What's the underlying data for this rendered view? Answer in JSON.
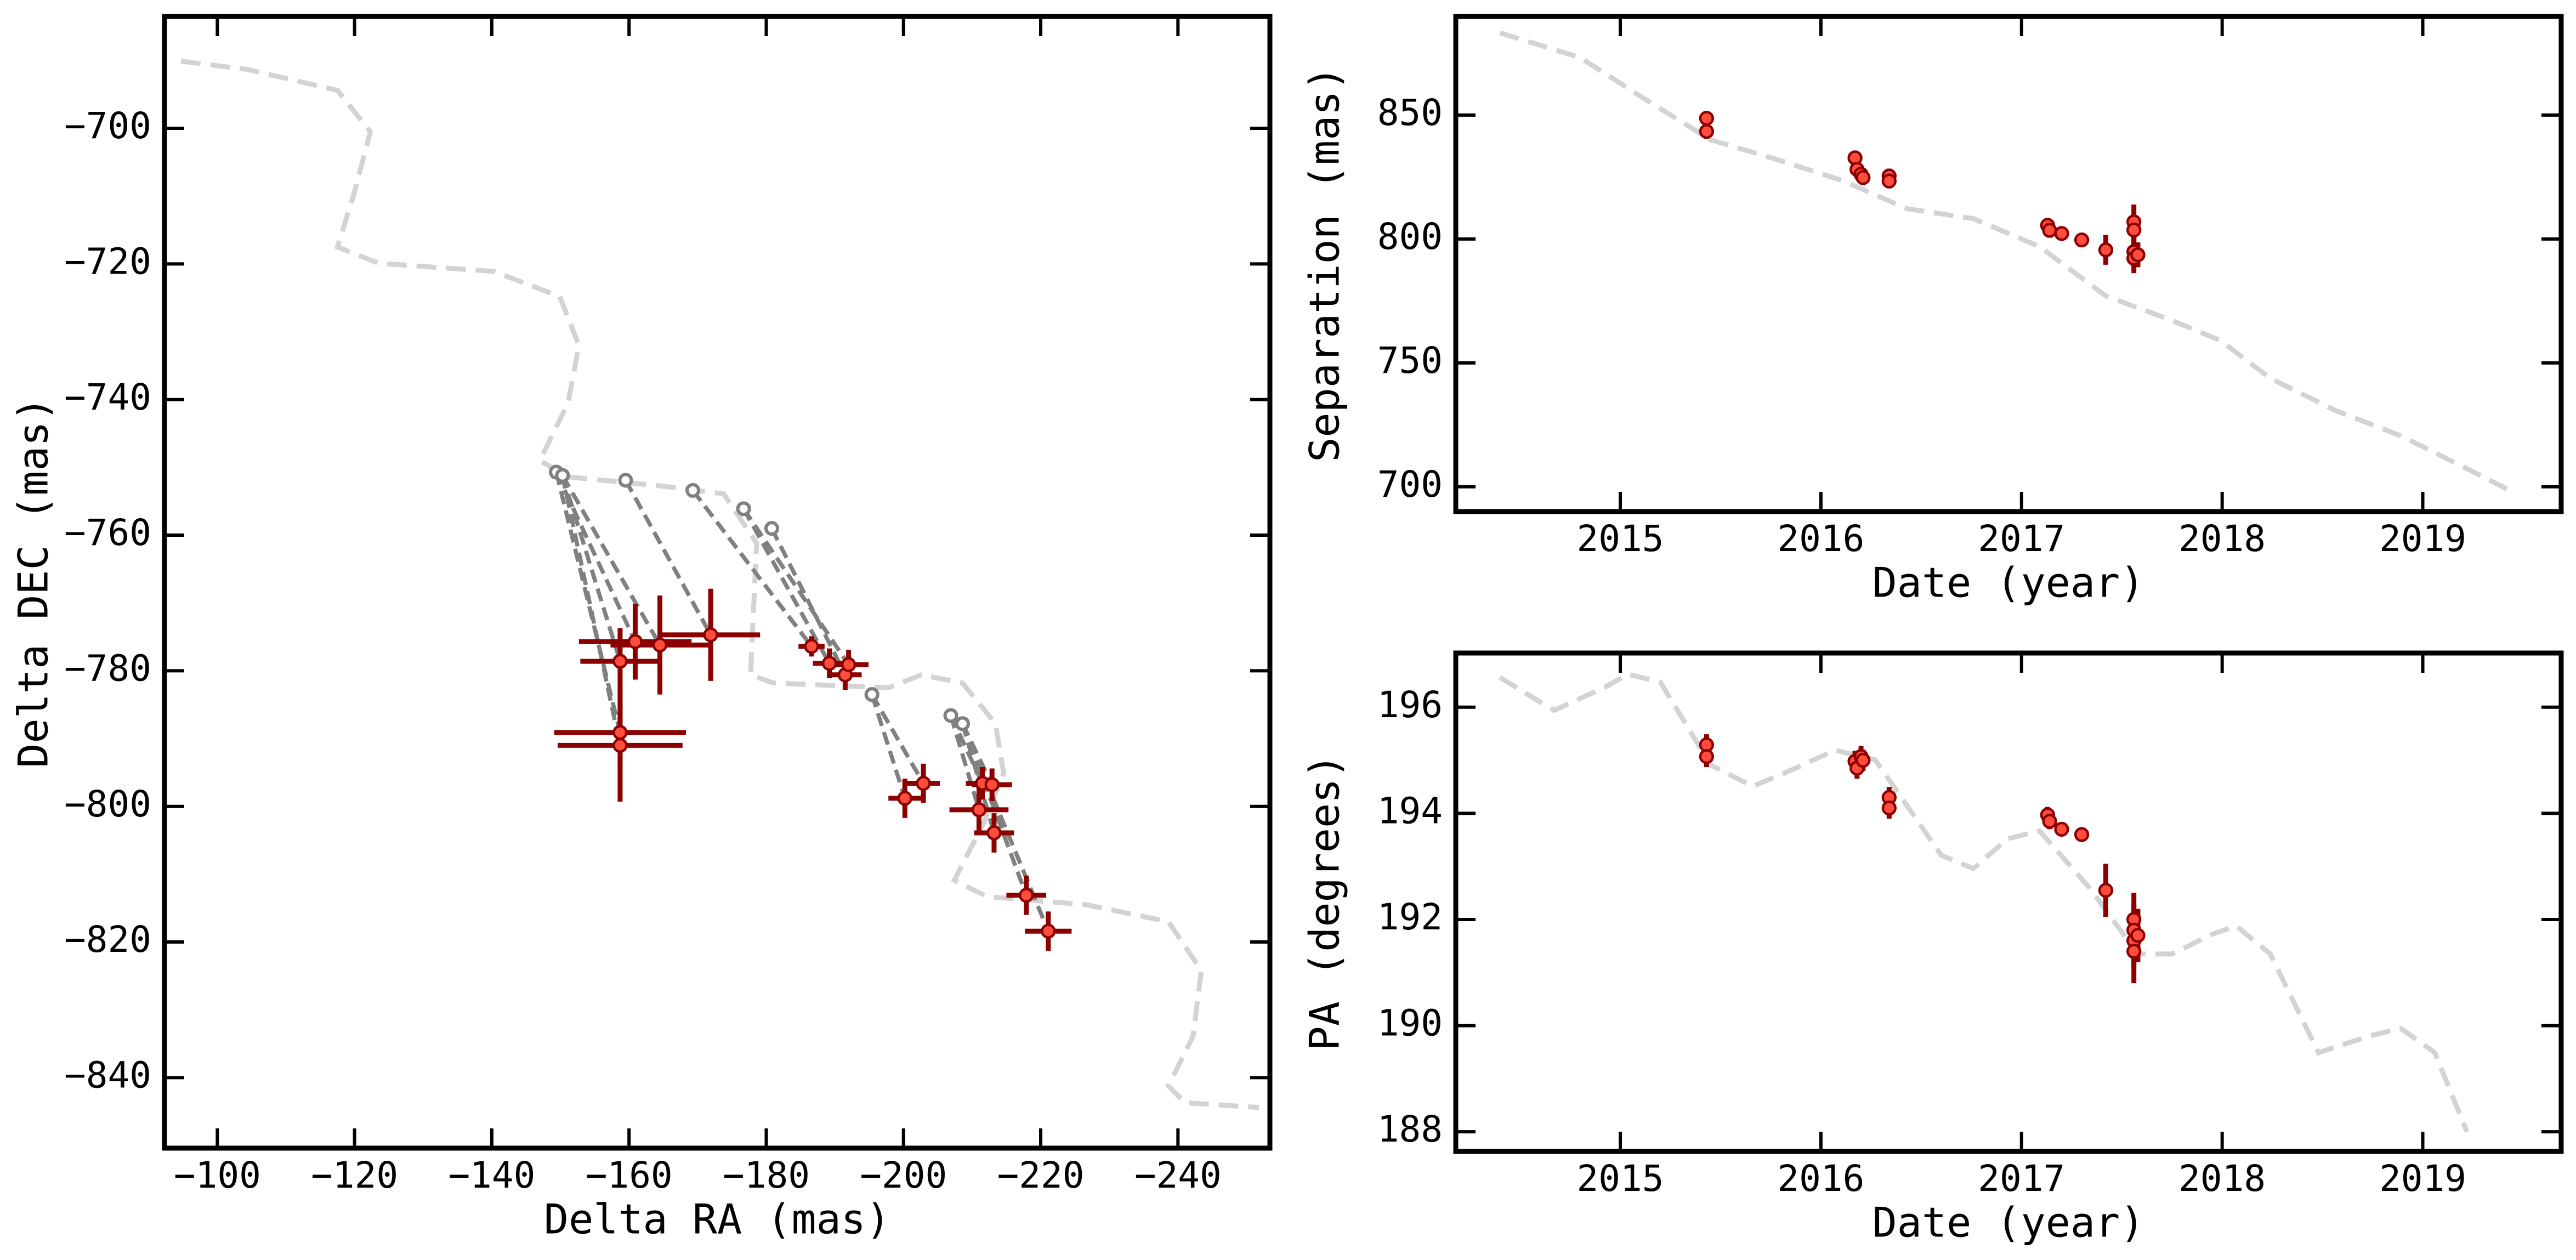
{
  "chart_data": [
    {
      "type": "astrometry",
      "xlabel": "Delta RA (mas)",
      "ylabel": "Delta DEC (mas)",
      "xlim": [
        -92.3,
        -253.4
      ],
      "ylim": [
        -850.4,
        -683.5
      ],
      "xticks": [
        {
          "value": -100,
          "label": "−100"
        },
        {
          "value": -120,
          "label": "−120"
        },
        {
          "value": -140,
          "label": "−140"
        },
        {
          "value": -160,
          "label": "−160"
        },
        {
          "value": -180,
          "label": "−180"
        },
        {
          "value": -200,
          "label": "−200"
        },
        {
          "value": -220,
          "label": "−220"
        },
        {
          "value": -240,
          "label": "−240"
        }
      ],
      "yticks": [
        {
          "value": -840,
          "label": "−840"
        },
        {
          "value": -820,
          "label": "−820"
        },
        {
          "value": -800,
          "label": "−800"
        },
        {
          "value": -780,
          "label": "−780"
        },
        {
          "value": -760,
          "label": "−760"
        },
        {
          "value": -740,
          "label": "−740"
        },
        {
          "value": -720,
          "label": "−720"
        },
        {
          "value": -700,
          "label": "−700"
        }
      ],
      "orbit": {
        "color": "#d3d3d3",
        "x": [
          -94.7,
          -104.3,
          -117.5,
          -122.3,
          -119.9,
          -117.5,
          -123.5,
          -140.3,
          -149.9,
          -152.7,
          -151.1,
          -147.0,
          -151.1,
          -164.3,
          -173.8,
          -178.6,
          -177.7,
          -181.0,
          -197.8,
          -202.6,
          -208.6,
          -213.4,
          -214.6,
          -211.7,
          -207.4,
          -212.2,
          -226.6,
          -238.6,
          -243.4,
          -242.2,
          -238.6,
          -241.0,
          -251.8
        ],
        "y": [
          -690.1,
          -691.3,
          -694.4,
          -700.5,
          -709.7,
          -717.5,
          -719.9,
          -721.1,
          -724.8,
          -732.0,
          -740.5,
          -749.0,
          -751.4,
          -752.7,
          -753.9,
          -761.2,
          -780.6,
          -781.8,
          -782.5,
          -780.6,
          -781.8,
          -787.8,
          -795.1,
          -802.4,
          -810.9,
          -813.3,
          -814.5,
          -817.0,
          -824.2,
          -833.9,
          -841.2,
          -843.7,
          -844.4
        ]
      },
      "model_points": {
        "color": "#808080",
        "x": [
          -150.3,
          -149.4,
          -150.3,
          -159.5,
          -149.4,
          -150.3,
          -169.3,
          -176.7,
          -180.8,
          -176.7,
          -195.4,
          -195.4,
          -206.9,
          -208.6,
          -206.9,
          -208.6,
          -208.6,
          -208.6
        ],
        "y": [
          -751.2,
          -750.7,
          -751.2,
          -751.9,
          -750.7,
          -751.2,
          -753.4,
          -756.1,
          -759.0,
          -756.1,
          -783.5,
          -783.5,
          -786.6,
          -787.8,
          -786.6,
          -787.8,
          -787.8,
          -787.8
        ]
      },
      "observations": {
        "color": "#ff4d3d",
        "edge_color": "#8b0000",
        "x": [
          -158.7,
          -160.9,
          -164.5,
          -171.9,
          -158.7,
          -158.7,
          -186.6,
          -189.2,
          -191.5,
          -192.0,
          -200.2,
          -202.9,
          -211.5,
          -212.9,
          -211.0,
          -213.2,
          -217.9,
          -221.1
        ],
        "y": [
          -778.6,
          -775.7,
          -776.2,
          -774.7,
          -789.1,
          -791.0,
          -776.4,
          -778.9,
          -780.6,
          -779.1,
          -798.8,
          -796.6,
          -796.6,
          -796.8,
          -800.5,
          -803.9,
          -813.1,
          -818.4
        ],
        "xerr": [
          5.8,
          8.2,
          7.2,
          7.2,
          9.6,
          9.1,
          1.9,
          2.4,
          2.4,
          2.9,
          2.4,
          2.4,
          2.4,
          2.9,
          4.3,
          2.9,
          2.9,
          3.4
        ],
        "yerr": [
          4.9,
          5.6,
          7.3,
          6.8,
          4.9,
          8.3,
          1.5,
          2.2,
          2.2,
          2.2,
          2.9,
          2.9,
          2.4,
          2.4,
          3.4,
          2.9,
          2.9,
          2.9
        ]
      }
    },
    {
      "type": "timeseries",
      "xlabel": "Date (year)",
      "ylabel": "Separation (mas)",
      "xlim": [
        2014.18,
        2019.69
      ],
      "ylim": [
        690.0,
        889.8
      ],
      "xticks": [
        2015,
        2016,
        2017,
        2018,
        2019
      ],
      "yticks": [
        700,
        750,
        800,
        850
      ],
      "model": {
        "color": "#d3d3d3",
        "x": [
          2014.4,
          2014.8,
          2015.12,
          2015.45,
          2015.78,
          2016.11,
          2016.43,
          2016.76,
          2017.09,
          2017.42,
          2017.75,
          2017.99,
          2018.24,
          2018.57,
          2018.89,
          2019.22,
          2019.43
        ],
        "y": [
          883.2,
          873.2,
          856.6,
          840.0,
          832.1,
          823.5,
          812.2,
          808.2,
          796.9,
          777.0,
          767.1,
          759.1,
          743.8,
          730.6,
          720.6,
          707.3,
          698.7
        ]
      },
      "observations": {
        "color": "#ff4d3d",
        "edge_color": "#8b0000",
        "x": [
          2015.43,
          2015.43,
          2016.17,
          2016.18,
          2016.2,
          2016.21,
          2016.34,
          2016.34,
          2017.13,
          2017.14,
          2017.2,
          2017.3,
          2017.42,
          2017.56,
          2017.56,
          2017.56,
          2017.56,
          2017.58
        ],
        "y": [
          848.7,
          843.4,
          832.7,
          828.1,
          826.1,
          824.8,
          825.4,
          823.4,
          805.5,
          803.5,
          802.2,
          799.6,
          795.6,
          806.9,
          803.6,
          794.9,
          792.2,
          793.6
        ],
        "yerr": [
          3,
          3,
          3,
          3,
          3,
          3,
          3,
          3,
          3,
          3,
          2,
          2,
          6,
          7,
          6,
          6,
          6,
          5
        ]
      }
    },
    {
      "type": "timeseries",
      "xlabel": "Date (year)",
      "ylabel": "PA (degrees)",
      "xlim": [
        2014.18,
        2019.69
      ],
      "ylim": [
        187.63,
        197.02
      ],
      "xticks": [
        2015,
        2016,
        2017,
        2018,
        2019
      ],
      "yticks": [
        188,
        190,
        192,
        194,
        196
      ],
      "model": {
        "color": "#d3d3d3",
        "x": [
          2014.4,
          2014.67,
          2014.92,
          2015.04,
          2015.2,
          2015.45,
          2015.66,
          2015.82,
          2016.07,
          2016.27,
          2016.43,
          2016.6,
          2016.76,
          2016.93,
          2017.09,
          2017.34,
          2017.58,
          2017.75,
          2017.95,
          2018.07,
          2018.24,
          2018.48,
          2018.73,
          2018.89,
          2019.06,
          2019.22
        ],
        "y": [
          196.56,
          195.94,
          196.37,
          196.62,
          196.47,
          194.91,
          194.51,
          194.76,
          195.19,
          195.01,
          194.14,
          193.21,
          192.96,
          193.52,
          193.67,
          192.59,
          191.35,
          191.35,
          191.72,
          191.88,
          191.35,
          189.49,
          189.8,
          189.95,
          189.49,
          188.0
        ]
      },
      "observations": {
        "color": "#ff4d3d",
        "edge_color": "#8b0000",
        "x": [
          2015.43,
          2015.43,
          2016.17,
          2016.18,
          2016.2,
          2016.21,
          2016.34,
          2016.34,
          2017.13,
          2017.14,
          2017.2,
          2017.3,
          2017.42,
          2017.56,
          2017.56,
          2017.56,
          2017.56,
          2017.58
        ],
        "y": [
          195.29,
          195.07,
          194.98,
          194.85,
          195.07,
          195.0,
          194.3,
          194.1,
          193.97,
          193.85,
          193.7,
          193.6,
          192.55,
          192.0,
          191.8,
          191.6,
          191.4,
          191.7
        ],
        "yerr": [
          0.2,
          0.2,
          0.2,
          0.2,
          0.2,
          0.2,
          0.2,
          0.2,
          0.15,
          0.15,
          0.1,
          0.1,
          0.5,
          0.5,
          0.5,
          0.5,
          0.6,
          0.5
        ]
      }
    }
  ]
}
